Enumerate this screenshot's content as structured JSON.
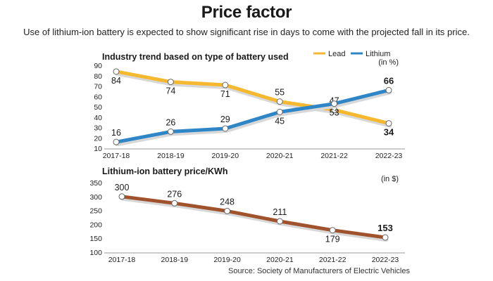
{
  "header": {
    "title": "Price factor",
    "subtitle": "Use of lithium-ion battery is expected to show significant rise in days to come with the projected fall in its price."
  },
  "source": "Source: Society of Manufacturers of Electric Vehicles",
  "chart_data": [
    {
      "type": "line",
      "title": "Industry trend based on type of battery used",
      "unit_note": "(in %)",
      "legend_position": "top-right",
      "categories": [
        "2017-18",
        "2018-19",
        "2019-20",
        "2020-21",
        "2021-22",
        "2022-23"
      ],
      "yticks": [
        10,
        20,
        30,
        40,
        50,
        60,
        70,
        80,
        90
      ],
      "ylim": [
        10,
        90
      ],
      "grid": false,
      "series": [
        {
          "name": "Lead",
          "color": "#f5b82e",
          "values": [
            84,
            74,
            71,
            55,
            47,
            34
          ]
        },
        {
          "name": "Lithium",
          "color": "#2f86c6",
          "values": [
            16,
            26,
            29,
            45,
            53,
            66
          ]
        }
      ]
    },
    {
      "type": "line",
      "title": "Lithium-ion battery price/KWh",
      "unit_note": "(in $)",
      "categories": [
        "2017-18",
        "2018-19",
        "2019-20",
        "2020-21",
        "2021-22",
        "2022-23"
      ],
      "yticks": [
        100,
        150,
        200,
        250,
        300,
        350
      ],
      "ylim": [
        100,
        350
      ],
      "grid": false,
      "series": [
        {
          "name": "",
          "color": "#a0522d",
          "values": [
            300,
            276,
            248,
            211,
            179,
            153
          ]
        }
      ]
    }
  ]
}
